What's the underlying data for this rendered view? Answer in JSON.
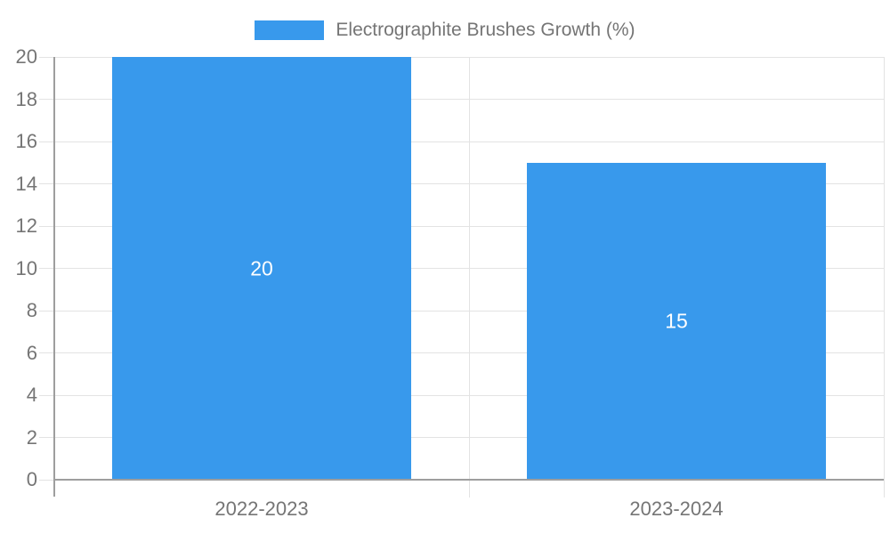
{
  "chart_data": {
    "type": "bar",
    "title": "",
    "legend": {
      "label": "Electrographite Brushes Growth (%)",
      "swatch_color": "#3899EC",
      "position": "top-center"
    },
    "categories": [
      "2022-2023",
      "2023-2024"
    ],
    "values": [
      20,
      15
    ],
    "bar_labels": [
      "20",
      "15"
    ],
    "xlabel": "",
    "ylabel": "",
    "ylim": [
      0,
      20
    ],
    "y_ticks": [
      0,
      2,
      4,
      6,
      8,
      10,
      12,
      14,
      16,
      18,
      20
    ],
    "grid": true,
    "colors": {
      "bar": "#3899EC",
      "bar_label": "#ffffff",
      "grid": "#e3e3e3",
      "axis": "#9e9e9e",
      "tick_label": "#757575"
    }
  }
}
